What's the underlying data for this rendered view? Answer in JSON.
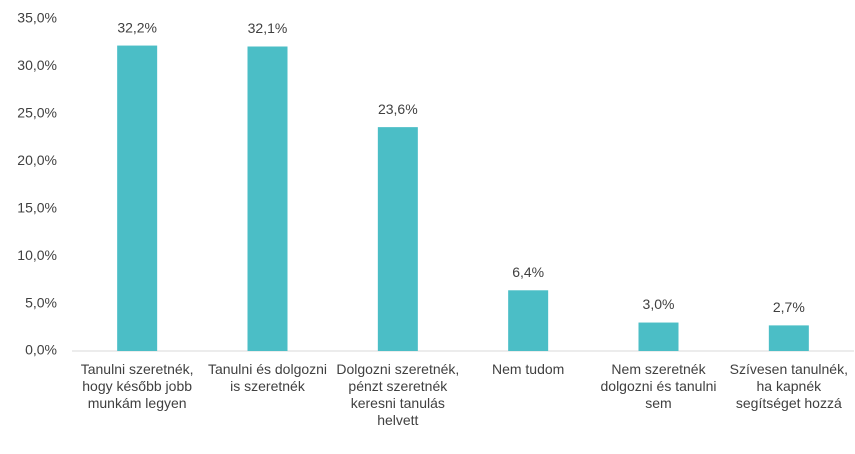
{
  "chart_data": {
    "type": "bar",
    "categories": [
      "Tanulni szeretnék, hogy később jobb munkám legyen",
      "Tanulni és dolgozni is szeretnék",
      "Dolgozni szeretnék, pénzt szeretnék keresni tanulás helvett",
      "Nem tudom",
      "Nem szeretnék dolgozni és tanulni sem",
      "Szívesen tanulnék, ha kapnék segítséget hozzá"
    ],
    "values": [
      32.2,
      32.1,
      23.6,
      6.4,
      3.0,
      2.7
    ],
    "value_labels": [
      "32,2%",
      "32,1%",
      "23,6%",
      "6,4%",
      "3,0%",
      "2,7%"
    ],
    "color": "#4bbec6",
    "ylim": [
      0,
      35
    ],
    "yticks": [
      {
        "value": 0,
        "label": "0,0%"
      },
      {
        "value": 5,
        "label": "5,0%"
      },
      {
        "value": 10,
        "label": "10,0%"
      },
      {
        "value": 15,
        "label": "15,0%"
      },
      {
        "value": 20,
        "label": "20,0%"
      },
      {
        "value": 25,
        "label": "25,0%"
      },
      {
        "value": 30,
        "label": "30,0%"
      },
      {
        "value": 35,
        "label": "35,0%"
      }
    ],
    "grid": false
  }
}
